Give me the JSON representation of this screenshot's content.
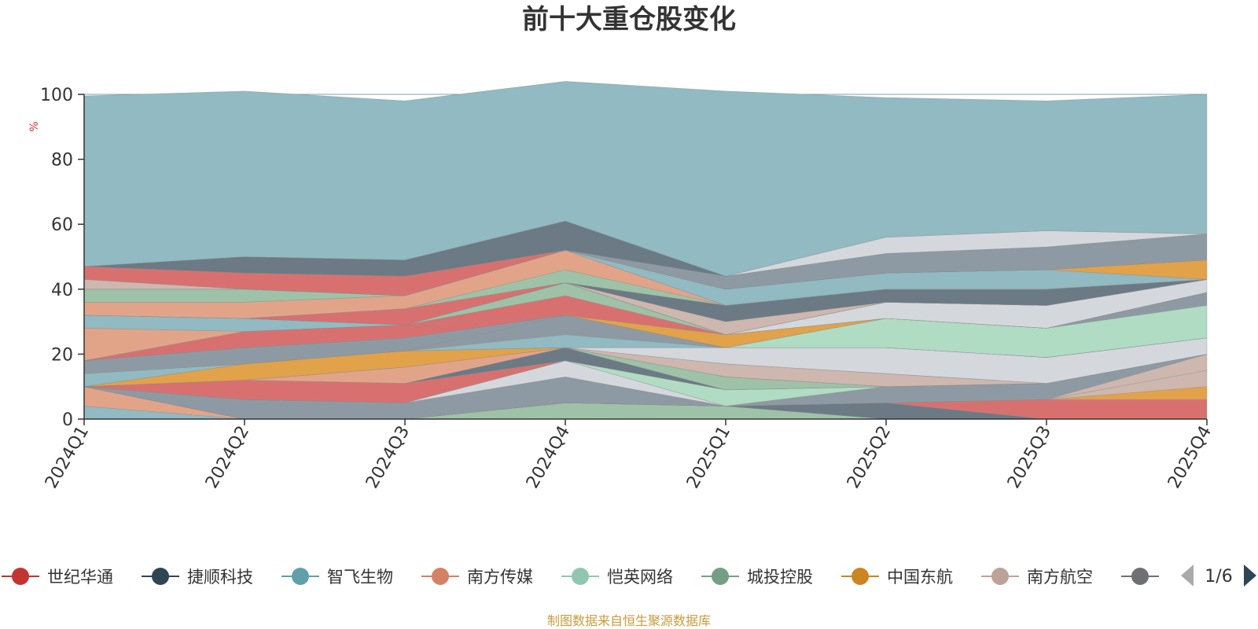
{
  "chart_data": {
    "type": "area",
    "title": "前十大重仓股变化",
    "ylabel": "%",
    "xlabel": "",
    "ylim": [
      0,
      100
    ],
    "yticks": [
      0,
      20,
      40,
      60,
      80,
      100
    ],
    "grid": true,
    "stacked": true,
    "categories": [
      "2024Q1",
      "2024Q2",
      "2024Q3",
      "2024Q4",
      "2025Q1",
      "2025Q2",
      "2025Q3",
      "2025Q4"
    ],
    "series": [
      {
        "name": "",
        "color": "#91bac2",
        "values": [
          4,
          0,
          0,
          0,
          0,
          0,
          0,
          0
        ]
      },
      {
        "name": "",
        "color": "#e2a489",
        "values": [
          6,
          0,
          0,
          0,
          0,
          0,
          0,
          0
        ]
      },
      {
        "name": "",
        "color": "#9ec2a7",
        "values": [
          0,
          0,
          0,
          5,
          4,
          0,
          0,
          0
        ]
      },
      {
        "name": "",
        "color": "#ceb7ae",
        "values": [
          0,
          0,
          0,
          0,
          0,
          0,
          0,
          0
        ]
      },
      {
        "name": "",
        "color": "#6b7a85",
        "values": [
          0,
          0,
          0,
          0,
          0,
          5,
          0,
          0
        ]
      },
      {
        "name": "",
        "color": "#d97070",
        "values": [
          0,
          0,
          0,
          0,
          0,
          0,
          6,
          6
        ]
      },
      {
        "name": "",
        "color": "#e2a24a",
        "values": [
          0,
          0,
          0,
          0,
          0,
          0,
          0,
          4
        ]
      },
      {
        "name": "",
        "color": "#ceb7ae",
        "values": [
          0,
          0,
          0,
          0,
          0,
          0,
          0,
          5
        ]
      },
      {
        "name": "",
        "color": "#ceb7ae",
        "values": [
          0,
          0,
          0,
          0,
          0,
          0,
          0,
          5
        ]
      },
      {
        "name": "",
        "color": "#8e9aa3",
        "values": [
          0,
          6,
          5,
          8,
          0,
          5,
          5,
          0
        ]
      },
      {
        "name": "",
        "color": "#d4d8dd",
        "values": [
          0,
          0,
          0,
          5,
          0,
          0,
          0,
          0
        ]
      },
      {
        "name": "",
        "color": "#b0dcc4",
        "values": [
          0,
          0,
          0,
          0,
          5,
          0,
          0,
          0
        ]
      },
      {
        "name": "",
        "color": "#d97070",
        "values": [
          0,
          6,
          6,
          0,
          0,
          0,
          0,
          0
        ]
      },
      {
        "name": "",
        "color": "#6b7a85",
        "values": [
          0,
          0,
          0,
          4,
          0,
          0,
          0,
          0
        ]
      },
      {
        "name": "",
        "color": "#9ec2a7",
        "values": [
          0,
          0,
          0,
          0,
          4,
          0,
          0,
          0
        ]
      },
      {
        "name": "",
        "color": "#e2a489",
        "values": [
          0,
          0,
          5,
          0,
          0,
          0,
          0,
          0
        ]
      },
      {
        "name": "",
        "color": "#ceb7ae",
        "values": [
          0,
          0,
          0,
          0,
          4,
          4,
          0,
          0
        ]
      },
      {
        "name": "",
        "color": "#e2a24a",
        "values": [
          0,
          5,
          5,
          0,
          0,
          0,
          0,
          0
        ]
      },
      {
        "name": "",
        "color": "#d4d8dd",
        "values": [
          0,
          0,
          0,
          0,
          5,
          8,
          8,
          5
        ]
      },
      {
        "name": "",
        "color": "#91bac2",
        "values": [
          4,
          0,
          0,
          4,
          0,
          0,
          0,
          0
        ]
      },
      {
        "name": "",
        "color": "#8e9aa3",
        "values": [
          0,
          0,
          0,
          6,
          0,
          0,
          0,
          0
        ]
      },
      {
        "name": "",
        "color": "#8e9aa3",
        "values": [
          4,
          5,
          4,
          0,
          0,
          0,
          0,
          0
        ]
      },
      {
        "name": "",
        "color": "#b0dcc4",
        "values": [
          0,
          0,
          0,
          0,
          0,
          9,
          9,
          10
        ]
      },
      {
        "name": "",
        "color": "#8e9aa3",
        "values": [
          0,
          0,
          0,
          0,
          0,
          0,
          0,
          4
        ]
      },
      {
        "name": "",
        "color": "#e2a24a",
        "values": [
          0,
          0,
          0,
          0,
          4,
          0,
          0,
          0
        ]
      },
      {
        "name": "",
        "color": "#d97070",
        "values": [
          0,
          5,
          4,
          0,
          0,
          0,
          0,
          0
        ]
      },
      {
        "name": "",
        "color": "#d97070",
        "values": [
          0,
          0,
          0,
          6,
          0,
          0,
          0,
          0
        ]
      },
      {
        "name": "",
        "color": "#9ec2a7",
        "values": [
          0,
          0,
          0,
          4,
          0,
          0,
          0,
          0
        ]
      },
      {
        "name": "",
        "color": "#d4d8dd",
        "values": [
          0,
          0,
          0,
          0,
          0,
          5,
          7,
          4
        ]
      },
      {
        "name": "",
        "color": "#e2a489",
        "values": [
          10,
          0,
          0,
          0,
          0,
          0,
          0,
          0
        ]
      },
      {
        "name": "",
        "color": "#91bac2",
        "values": [
          4,
          4,
          0,
          0,
          0,
          0,
          0,
          0
        ]
      },
      {
        "name": "",
        "color": "#b0dcc4",
        "values": [
          0,
          0,
          0,
          0,
          0,
          0,
          0,
          0
        ]
      },
      {
        "name": "",
        "color": "#ceb7ae",
        "values": [
          0,
          0,
          0,
          0,
          4,
          0,
          0,
          0
        ]
      },
      {
        "name": "",
        "color": "#6b7a85",
        "values": [
          0,
          0,
          0,
          0,
          5,
          4,
          5,
          0
        ]
      },
      {
        "name": "",
        "color": "#d97070",
        "values": [
          0,
          0,
          5,
          0,
          0,
          0,
          0,
          0
        ]
      },
      {
        "name": "",
        "color": "#9ec2a7",
        "values": [
          0,
          0,
          0,
          4,
          0,
          0,
          0,
          0
        ]
      },
      {
        "name": "",
        "color": "#e2a489",
        "values": [
          4,
          5,
          4,
          6,
          0,
          0,
          0,
          0
        ]
      },
      {
        "name": "",
        "color": "#9ec2a7",
        "values": [
          4,
          4,
          0,
          0,
          0,
          0,
          0,
          0
        ]
      },
      {
        "name": "",
        "color": "#91bac2",
        "values": [
          0,
          0,
          0,
          0,
          5,
          5,
          6,
          0
        ]
      },
      {
        "name": "",
        "color": "#e2a24a",
        "values": [
          0,
          0,
          0,
          0,
          0,
          0,
          0,
          6
        ]
      },
      {
        "name": "",
        "color": "#ceb7ae",
        "values": [
          3,
          0,
          0,
          0,
          0,
          0,
          0,
          0
        ]
      },
      {
        "name": "",
        "color": "#d97070",
        "values": [
          4,
          5,
          6,
          0,
          0,
          0,
          0,
          0
        ]
      },
      {
        "name": "",
        "color": "#8e9aa3",
        "values": [
          0,
          0,
          0,
          0,
          4,
          6,
          7,
          8
        ]
      },
      {
        "name": "",
        "color": "#6b7a85",
        "values": [
          0,
          5,
          5,
          9,
          0,
          0,
          0,
          0
        ]
      },
      {
        "name": "",
        "color": "#d4d8dd",
        "values": [
          0,
          0,
          0,
          0,
          0,
          5,
          5,
          0
        ]
      },
      {
        "name": "",
        "color": "#91bac2",
        "values": [
          52.5,
          51,
          49,
          43,
          57,
          43,
          40,
          43
        ]
      }
    ],
    "legend": {
      "position": "bottom",
      "items": [
        {
          "name": "世纪华通",
          "color": "#c23531"
        },
        {
          "name": "捷顺科技",
          "color": "#2f4554"
        },
        {
          "name": "智飞生物",
          "color": "#61a0a8"
        },
        {
          "name": "南方传媒",
          "color": "#d48265"
        },
        {
          "name": "恺英网络",
          "color": "#91c7ae"
        },
        {
          "name": "城投控股",
          "color": "#749f83"
        },
        {
          "name": "中国东航",
          "color": "#ca8622"
        },
        {
          "name": "南方航空",
          "color": "#bda29a"
        },
        {
          "name": "",
          "color": "#6e7074"
        }
      ],
      "page": "1/6"
    },
    "source": "制图数据来自恒生聚源数据库"
  }
}
